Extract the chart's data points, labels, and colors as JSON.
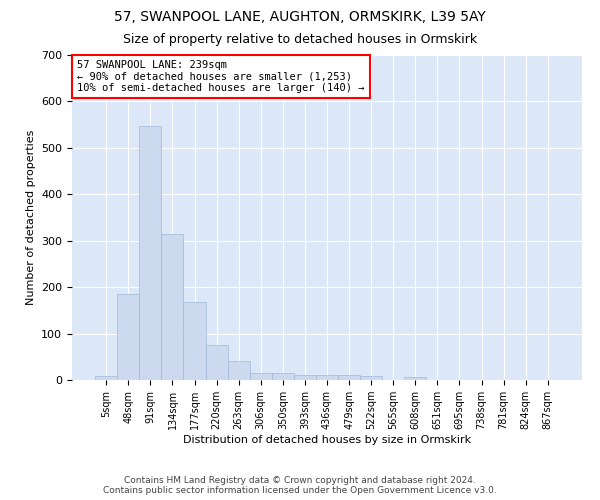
{
  "title": "57, SWANPOOL LANE, AUGHTON, ORMSKIRK, L39 5AY",
  "subtitle": "Size of property relative to detached houses in Ormskirk",
  "xlabel": "Distribution of detached houses by size in Ormskirk",
  "ylabel": "Number of detached properties",
  "bar_color": "#ccd9ee",
  "bar_edge_color": "#a0b8d8",
  "background_color": "#dce8f8",
  "fig_background": "#ffffff",
  "categories": [
    "5sqm",
    "48sqm",
    "91sqm",
    "134sqm",
    "177sqm",
    "220sqm",
    "263sqm",
    "306sqm",
    "350sqm",
    "393sqm",
    "436sqm",
    "479sqm",
    "522sqm",
    "565sqm",
    "608sqm",
    "651sqm",
    "695sqm",
    "738sqm",
    "781sqm",
    "824sqm",
    "867sqm"
  ],
  "values": [
    8,
    185,
    548,
    315,
    168,
    76,
    40,
    15,
    15,
    11,
    11,
    11,
    8,
    0,
    6,
    0,
    0,
    0,
    0,
    0,
    0
  ],
  "ylim": [
    0,
    700
  ],
  "yticks": [
    0,
    100,
    200,
    300,
    400,
    500,
    600,
    700
  ],
  "annotation_text": "57 SWANPOOL LANE: 239sqm\n← 90% of detached houses are smaller (1,253)\n10% of semi-detached houses are larger (140) →",
  "footnote_line1": "Contains HM Land Registry data © Crown copyright and database right 2024.",
  "footnote_line2": "Contains public sector information licensed under the Open Government Licence v3.0.",
  "grid_color": "#ffffff",
  "title_fontsize": 10,
  "subtitle_fontsize": 9,
  "xlabel_fontsize": 8,
  "ylabel_fontsize": 8
}
